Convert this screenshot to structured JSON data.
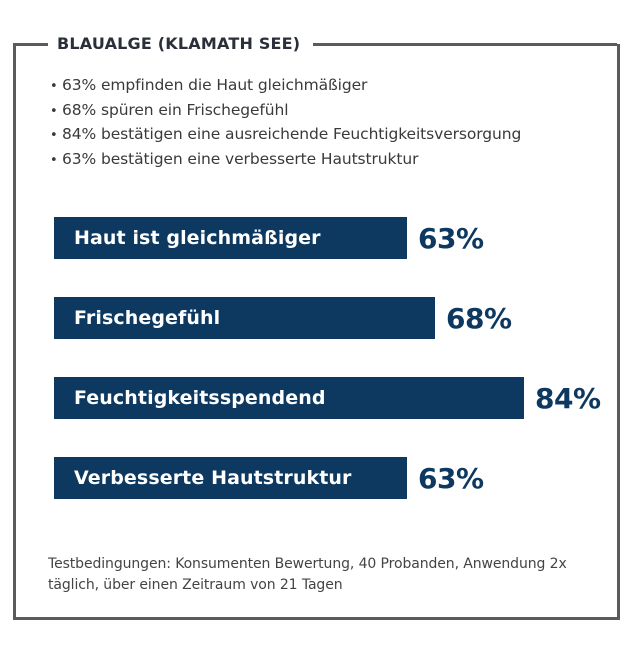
{
  "card": {
    "title": "BLAUALGE (KLAMATH SEE)",
    "bullets": [
      "63% empfinden die Haut gleichmäßiger",
      "68% spüren ein Frischegefühl",
      "84% bestätigen eine ausreichende Feuchtigkeitsversorgung",
      "63% bestätigen eine verbesserte Hautstruktur"
    ],
    "bullet_glyph": "•",
    "footnote": "Testbedingungen: Konsumenten Bewertung, 40 Probanden, Anwendung 2x täglich, über einen Zeitraum von 21 Tagen"
  },
  "colors": {
    "bar": "#0d3860",
    "value_text": "#0d3860",
    "border": "#5b5b5b",
    "title_text": "#2a2f3a"
  },
  "chart_data": {
    "type": "bar",
    "orientation": "horizontal",
    "title": "BLAUALGE (KLAMATH SEE)",
    "categories": [
      "Haut ist gleichmäßiger",
      "Frischegefühl",
      "Feuchtigkeitsspendend",
      "Verbesserte Hautstruktur"
    ],
    "values": [
      63,
      68,
      84,
      63
    ],
    "value_labels": [
      "63%",
      "68%",
      "84%",
      "63%"
    ],
    "xlabel": "",
    "ylabel": "",
    "unit": "%",
    "grid": false,
    "legend": null
  }
}
